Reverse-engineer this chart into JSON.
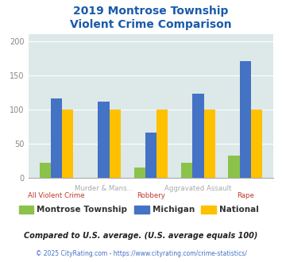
{
  "title": "2019 Montrose Township\nViolent Crime Comparison",
  "categories": [
    "All Violent Crime",
    "Murder & Mans...",
    "Robbery",
    "Aggravated Assault",
    "Rape"
  ],
  "label_row1": [
    "",
    "Murder & Mans...",
    "",
    "Aggravated Assault",
    ""
  ],
  "label_row2": [
    "All Violent Crime",
    "",
    "Robbery",
    "",
    "Rape"
  ],
  "montrose": [
    22,
    0,
    16,
    23,
    33
  ],
  "michigan": [
    116,
    112,
    66,
    123,
    170
  ],
  "national": [
    100,
    100,
    100,
    100,
    100
  ],
  "colors": {
    "montrose": "#8bc34a",
    "michigan": "#4472c4",
    "national": "#ffc000"
  },
  "ylim": [
    0,
    210
  ],
  "yticks": [
    0,
    50,
    100,
    150,
    200
  ],
  "legend_labels": [
    "Montrose Township",
    "Michigan",
    "National"
  ],
  "footnote1": "Compared to U.S. average. (U.S. average equals 100)",
  "footnote2": "© 2025 CityRating.com - https://www.cityrating.com/crime-statistics/",
  "bg_color": "#dde8e8",
  "title_color": "#1a5aaa",
  "row1_color": "#aaaaaa",
  "row2_color": "#c0392b",
  "footnote1_color": "#222222",
  "footnote2_color": "#4472c4",
  "ytick_color": "#888888"
}
